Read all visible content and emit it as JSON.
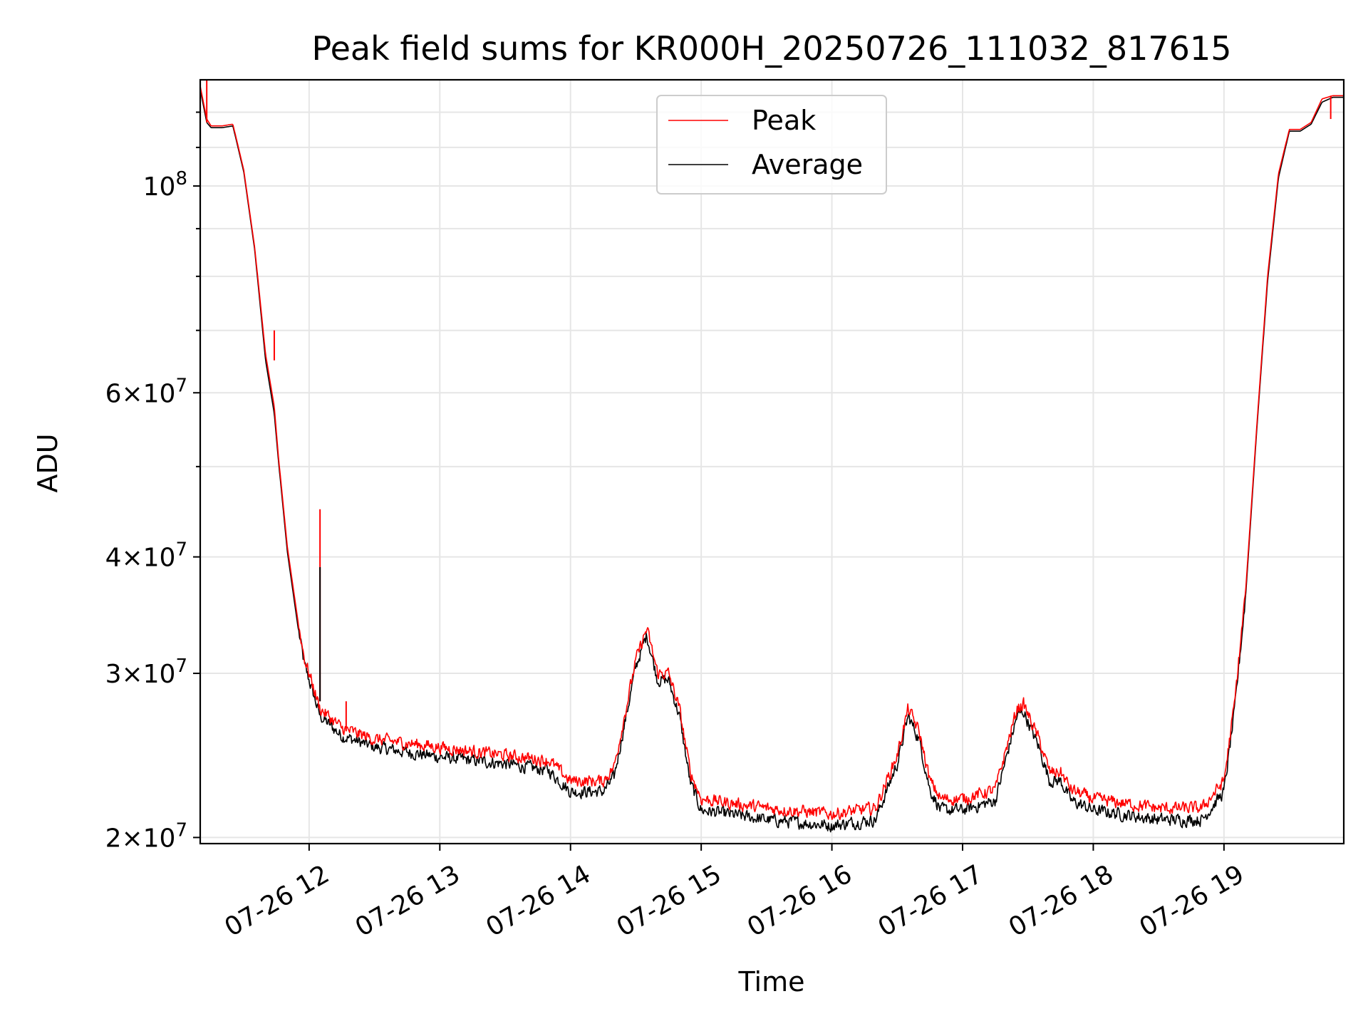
{
  "chart_data": {
    "type": "line",
    "title": "Peak field sums for KR000H_20250726_111032_817615",
    "xlabel": "Time",
    "ylabel": "ADU",
    "y_scale": "log",
    "x_range": [
      "2025-07-26 11:10",
      "2025-07-26 19:55"
    ],
    "ylim": [
      19700000,
      130000000
    ],
    "grid": true,
    "legend_position": "upper center",
    "x_ticks": [
      {
        "value": "2025-07-26 12:00",
        "label": "07-26 12"
      },
      {
        "value": "2025-07-26 13:00",
        "label": "07-26 13"
      },
      {
        "value": "2025-07-26 14:00",
        "label": "07-26 14"
      },
      {
        "value": "2025-07-26 15:00",
        "label": "07-26 15"
      },
      {
        "value": "2025-07-26 16:00",
        "label": "07-26 16"
      },
      {
        "value": "2025-07-26 17:00",
        "label": "07-26 17"
      },
      {
        "value": "2025-07-26 18:00",
        "label": "07-26 18"
      },
      {
        "value": "2025-07-26 19:00",
        "label": "07-26 19"
      }
    ],
    "y_ticks": [
      {
        "value": 20000000,
        "base": "2×10",
        "exp": "7"
      },
      {
        "value": 30000000,
        "base": "3×10",
        "exp": "7"
      },
      {
        "value": 40000000,
        "base": "4×10",
        "exp": "7"
      },
      {
        "value": 60000000,
        "base": "6×10",
        "exp": "7"
      },
      {
        "value": 100000000,
        "base": "10",
        "exp": "8"
      }
    ],
    "series": [
      {
        "name": "Peak",
        "color": "#ff0000",
        "x": [
          "2025-07-26 11:10",
          "2025-07-26 11:13",
          "2025-07-26 11:15",
          "2025-07-26 11:20",
          "2025-07-26 11:25",
          "2025-07-26 11:30",
          "2025-07-26 11:35",
          "2025-07-26 11:40",
          "2025-07-26 11:44",
          "2025-07-26 11:46",
          "2025-07-26 11:50",
          "2025-07-26 11:55",
          "2025-07-26 11:58",
          "2025-07-26 12:00",
          "2025-07-26 12:05",
          "2025-07-26 12:15",
          "2025-07-26 12:30",
          "2025-07-26 13:00",
          "2025-07-26 13:30",
          "2025-07-26 13:50",
          "2025-07-26 14:00",
          "2025-07-26 14:15",
          "2025-07-26 14:20",
          "2025-07-26 14:30",
          "2025-07-26 14:35",
          "2025-07-26 14:40",
          "2025-07-26 14:45",
          "2025-07-26 14:50",
          "2025-07-26 14:55",
          "2025-07-26 15:00",
          "2025-07-26 15:30",
          "2025-07-26 16:00",
          "2025-07-26 16:20",
          "2025-07-26 16:30",
          "2025-07-26 16:35",
          "2025-07-26 16:40",
          "2025-07-26 16:45",
          "2025-07-26 16:50",
          "2025-07-26 17:00",
          "2025-07-26 17:15",
          "2025-07-26 17:25",
          "2025-07-26 17:28",
          "2025-07-26 17:35",
          "2025-07-26 17:40",
          "2025-07-26 17:45",
          "2025-07-26 17:50",
          "2025-07-26 18:00",
          "2025-07-26 18:30",
          "2025-07-26 18:50",
          "2025-07-26 19:00",
          "2025-07-26 19:05",
          "2025-07-26 19:10",
          "2025-07-26 19:15",
          "2025-07-26 19:20",
          "2025-07-26 19:25",
          "2025-07-26 19:30",
          "2025-07-26 19:35",
          "2025-07-26 19:40",
          "2025-07-26 19:45",
          "2025-07-26 19:50",
          "2025-07-26 19:55"
        ],
        "values": [
          128000000,
          118000000,
          116000000,
          116000000,
          116500000,
          104000000,
          86000000,
          66000000,
          58000000,
          51000000,
          41000000,
          34000000,
          31000000,
          30000000,
          27500000,
          26200000,
          25500000,
          25000000,
          24500000,
          24200000,
          23000000,
          23000000,
          23800000,
          31000000,
          33500000,
          30000000,
          30000000,
          27500000,
          23500000,
          22000000,
          21500000,
          21200000,
          21500000,
          24500000,
          27500000,
          26000000,
          23000000,
          22000000,
          22000000,
          22500000,
          27500000,
          27800000,
          25500000,
          23500000,
          23500000,
          22500000,
          22000000,
          21500000,
          21500000,
          23000000,
          28000000,
          37000000,
          55000000,
          80000000,
          103000000,
          115000000,
          115000000,
          117000000,
          124000000,
          125000000,
          125000000
        ]
      },
      {
        "name": "Average",
        "color": "#000000",
        "x": [
          "2025-07-26 11:10",
          "2025-07-26 11:13",
          "2025-07-26 11:15",
          "2025-07-26 11:20",
          "2025-07-26 11:25",
          "2025-07-26 11:30",
          "2025-07-26 11:35",
          "2025-07-26 11:40",
          "2025-07-26 11:44",
          "2025-07-26 11:46",
          "2025-07-26 11:50",
          "2025-07-26 11:55",
          "2025-07-26 11:58",
          "2025-07-26 12:00",
          "2025-07-26 12:05",
          "2025-07-26 12:15",
          "2025-07-26 12:30",
          "2025-07-26 13:00",
          "2025-07-26 13:30",
          "2025-07-26 13:50",
          "2025-07-26 14:00",
          "2025-07-26 14:15",
          "2025-07-26 14:20",
          "2025-07-26 14:30",
          "2025-07-26 14:35",
          "2025-07-26 14:40",
          "2025-07-26 14:45",
          "2025-07-26 14:50",
          "2025-07-26 14:55",
          "2025-07-26 15:00",
          "2025-07-26 15:30",
          "2025-07-26 16:00",
          "2025-07-26 16:20",
          "2025-07-26 16:30",
          "2025-07-26 16:35",
          "2025-07-26 16:40",
          "2025-07-26 16:45",
          "2025-07-26 16:50",
          "2025-07-26 17:00",
          "2025-07-26 17:15",
          "2025-07-26 17:25",
          "2025-07-26 17:28",
          "2025-07-26 17:35",
          "2025-07-26 17:40",
          "2025-07-26 17:45",
          "2025-07-26 17:50",
          "2025-07-26 18:00",
          "2025-07-26 18:30",
          "2025-07-26 18:50",
          "2025-07-26 19:00",
          "2025-07-26 19:05",
          "2025-07-26 19:10",
          "2025-07-26 19:15",
          "2025-07-26 19:20",
          "2025-07-26 19:25",
          "2025-07-26 19:30",
          "2025-07-26 19:35",
          "2025-07-26 19:40",
          "2025-07-26 19:45",
          "2025-07-26 19:50",
          "2025-07-26 19:55"
        ],
        "values": [
          127000000,
          117000000,
          115500000,
          115500000,
          116000000,
          103500000,
          85500000,
          65000000,
          57000000,
          50500000,
          40500000,
          33500000,
          30500000,
          29500000,
          27000000,
          25700000,
          25000000,
          24400000,
          24000000,
          23600000,
          22400000,
          22400000,
          23200000,
          30500000,
          33000000,
          29500000,
          29500000,
          27000000,
          22900000,
          21400000,
          20900000,
          20600000,
          20900000,
          24000000,
          27000000,
          25500000,
          22500000,
          21400000,
          21400000,
          21900000,
          27000000,
          27300000,
          25000000,
          23000000,
          23000000,
          21900000,
          21400000,
          20900000,
          20900000,
          22400000,
          27500000,
          36500000,
          54500000,
          79000000,
          102000000,
          114500000,
          114500000,
          116500000,
          123000000,
          124500000,
          124500000
        ]
      }
    ]
  }
}
